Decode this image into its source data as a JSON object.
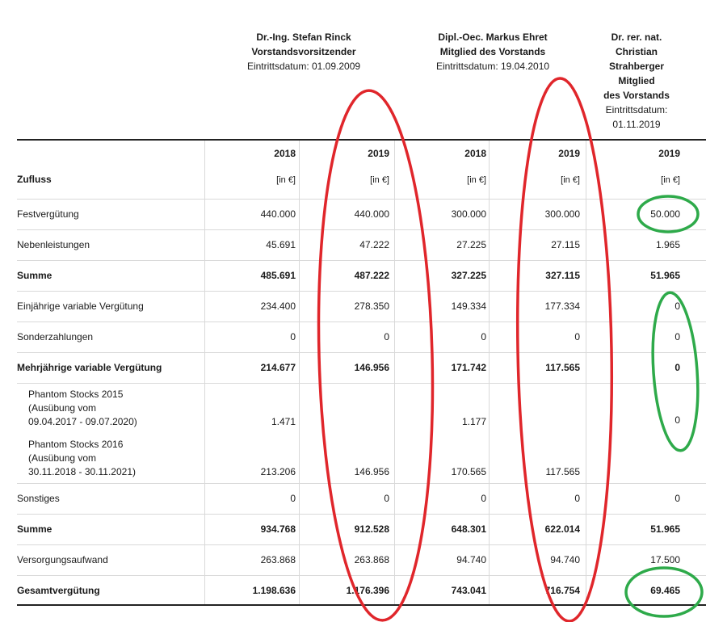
{
  "members": [
    {
      "name": "Dr.-Ing. Stefan Rinck",
      "role": "Vorstandsvorsitzender",
      "entry": "Eintrittsdatum: 01.09.2009"
    },
    {
      "name": "Dipl.-Oec. Markus Ehret",
      "role": "Mitglied des Vorstands",
      "entry": "Eintrittsdatum: 19.04.2010"
    },
    {
      "name_lines": [
        "Dr. rer. nat.",
        "Christian",
        "Strahberger",
        "Mitglied",
        "des Vorstands"
      ],
      "entry_lines": [
        "Eintrittsdatum:",
        "01.11.2019"
      ]
    }
  ],
  "table": {
    "section_label": "Zufluss",
    "years": [
      "2018",
      "2019",
      "2018",
      "2019",
      "2019"
    ],
    "unit": "[in €]",
    "rows": [
      {
        "label": "Festvergütung",
        "bold": false,
        "values": [
          "440.000",
          "440.000",
          "300.000",
          "300.000",
          "50.000"
        ]
      },
      {
        "label": "Nebenleistungen",
        "bold": false,
        "values": [
          "45.691",
          "47.222",
          "27.225",
          "27.115",
          "1.965"
        ]
      },
      {
        "label": "Summe",
        "bold": true,
        "values": [
          "485.691",
          "487.222",
          "327.225",
          "327.115",
          "51.965"
        ]
      },
      {
        "label": "Einjährige variable Vergütung",
        "bold": false,
        "values": [
          "234.400",
          "278.350",
          "149.334",
          "177.334",
          "0"
        ]
      },
      {
        "label": "Sonderzahlungen",
        "bold": false,
        "values": [
          "0",
          "0",
          "0",
          "0",
          "0"
        ]
      },
      {
        "label": "Mehrjährige variable Vergütung",
        "bold": true,
        "values": [
          "214.677",
          "146.956",
          "171.742",
          "117.565",
          "0"
        ]
      },
      {
        "label_lines": [
          "Phantom Stocks 2015",
          "(Ausübung vom",
          "09.04.2017 - 09.07.2020)"
        ],
        "values": [
          "1.471",
          "",
          "1.177",
          "",
          "0"
        ]
      },
      {
        "label_lines": [
          "Phantom Stocks 2016",
          "(Ausübung vom",
          "30.11.2018 - 30.11.2021)"
        ],
        "values": [
          "213.206",
          "146.956",
          "170.565",
          "117.565",
          ""
        ]
      },
      {
        "label": "Sonstiges",
        "bold": false,
        "values": [
          "0",
          "0",
          "0",
          "0",
          "0"
        ]
      },
      {
        "label": "Summe",
        "bold": true,
        "values": [
          "934.768",
          "912.528",
          "648.301",
          "622.014",
          "51.965"
        ]
      },
      {
        "label": "Versorgungsaufwand",
        "bold": false,
        "values": [
          "263.868",
          "263.868",
          "94.740",
          "94.740",
          "17.500"
        ]
      },
      {
        "label": "Gesamtvergütung",
        "bold": true,
        "values": [
          "1.198.636",
          "1.176.396",
          "743.041",
          "716.754",
          "69.465"
        ]
      }
    ]
  },
  "annotation_colors": {
    "red": "#e0262b",
    "green": "#2eaa4a"
  }
}
